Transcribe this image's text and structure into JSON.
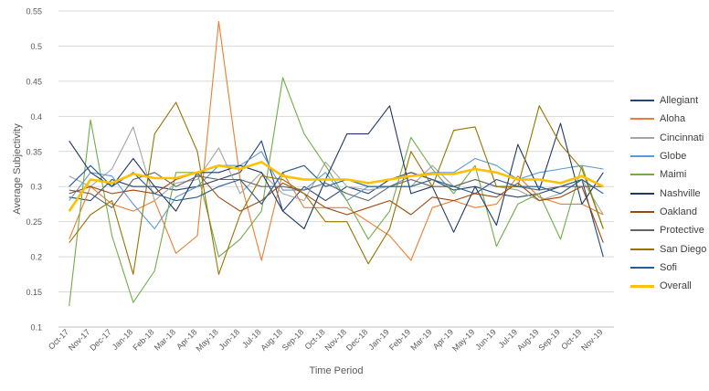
{
  "chart_data": {
    "type": "line",
    "title": "",
    "xlabel": "Time Period",
    "ylabel": "Average Subjectivity",
    "ylim": [
      0.1,
      0.55
    ],
    "yticks": [
      "0.1",
      "0.15",
      "0.2",
      "0.25",
      "0.3",
      "0.35",
      "0.4",
      "0.45",
      "0.5",
      "0.55"
    ],
    "categories": [
      "Oct-17",
      "Nov-17",
      "Dec-17",
      "Jan-18",
      "Feb-18",
      "Mar-18",
      "Apr-18",
      "May-18",
      "Jun-18",
      "Jul-18",
      "Aug-18",
      "Sep-18",
      "Oct-18",
      "Nov-18",
      "Dec-18",
      "Jan-19",
      "Feb-19",
      "Mar-19",
      "Apr-19",
      "May-19",
      "Jun-19",
      "Jul-19",
      "Aug-19",
      "Sep-19",
      "Oct-19",
      "Nov-19"
    ],
    "grid": "horizontal",
    "legend_position": "right",
    "series": [
      {
        "name": "Allegiant",
        "color": "#264478",
        "values": [
          0.285,
          0.28,
          0.31,
          0.3,
          0.3,
          0.295,
          0.3,
          0.31,
          0.32,
          0.365,
          0.265,
          0.3,
          0.28,
          0.3,
          0.29,
          0.31,
          0.32,
          0.31,
          0.295,
          0.3,
          0.29,
          0.285,
          0.29,
          0.3,
          0.31,
          0.2
        ]
      },
      {
        "name": "Aloha",
        "color": "#ED7D31",
        "values": [
          0.225,
          0.3,
          0.275,
          0.265,
          0.28,
          0.205,
          0.23,
          0.535,
          0.31,
          0.195,
          0.32,
          0.27,
          0.27,
          0.27,
          0.25,
          0.23,
          0.195,
          0.27,
          0.28,
          0.27,
          0.275,
          0.315,
          0.285,
          0.275,
          0.275,
          0.26
        ]
      },
      {
        "name": "Cincinnati",
        "color": "#A5A5A5",
        "values": [
          0.315,
          0.3,
          0.325,
          0.385,
          0.28,
          0.305,
          0.31,
          0.355,
          0.29,
          0.32,
          0.29,
          0.28,
          0.335,
          0.3,
          0.295,
          0.3,
          0.3,
          0.33,
          0.3,
          0.31,
          0.3,
          0.295,
          0.28,
          0.29,
          0.31,
          0.26
        ]
      },
      {
        "name": "Globe",
        "color": "#5B9BD5",
        "values": [
          0.28,
          0.32,
          0.315,
          0.275,
          0.24,
          0.285,
          0.3,
          0.33,
          0.33,
          0.35,
          0.295,
          0.295,
          0.32,
          0.28,
          0.3,
          0.3,
          0.315,
          0.32,
          0.32,
          0.34,
          0.33,
          0.31,
          0.32,
          0.325,
          0.33,
          0.325
        ]
      },
      {
        "name": "Maimi",
        "color": "#70AD47",
        "values": [
          0.13,
          0.395,
          0.23,
          0.135,
          0.18,
          0.32,
          0.32,
          0.2,
          0.225,
          0.265,
          0.455,
          0.375,
          0.33,
          0.28,
          0.225,
          0.265,
          0.37,
          0.325,
          0.29,
          0.33,
          0.215,
          0.275,
          0.29,
          0.225,
          0.33,
          0.24
        ]
      },
      {
        "name": "Nashville",
        "color": "#1F3864",
        "values": [
          0.365,
          0.32,
          0.3,
          0.34,
          0.3,
          0.265,
          0.32,
          0.32,
          0.33,
          0.32,
          0.265,
          0.24,
          0.31,
          0.375,
          0.375,
          0.415,
          0.29,
          0.3,
          0.235,
          0.3,
          0.245,
          0.36,
          0.295,
          0.39,
          0.275,
          0.32
        ]
      },
      {
        "name": "Oakland",
        "color": "#9E480E",
        "values": [
          0.29,
          0.3,
          0.29,
          0.295,
          0.29,
          0.31,
          0.32,
          0.285,
          0.265,
          0.28,
          0.305,
          0.29,
          0.27,
          0.26,
          0.27,
          0.28,
          0.26,
          0.285,
          0.28,
          0.29,
          0.285,
          0.305,
          0.28,
          0.285,
          0.3,
          0.22
        ]
      },
      {
        "name": "Protective",
        "color": "#636363",
        "values": [
          0.295,
          0.29,
          0.27,
          0.31,
          0.32,
          0.3,
          0.315,
          0.31,
          0.31,
          0.3,
          0.3,
          0.295,
          0.305,
          0.29,
          0.28,
          0.3,
          0.31,
          0.3,
          0.3,
          0.31,
          0.3,
          0.3,
          0.295,
          0.3,
          0.3,
          0.3
        ]
      },
      {
        "name": "San Diego",
        "color": "#997300",
        "values": [
          0.22,
          0.26,
          0.28,
          0.175,
          0.375,
          0.42,
          0.35,
          0.175,
          0.26,
          0.315,
          0.31,
          0.29,
          0.25,
          0.25,
          0.19,
          0.24,
          0.35,
          0.3,
          0.38,
          0.385,
          0.3,
          0.3,
          0.415,
          0.36,
          0.325,
          0.24
        ]
      },
      {
        "name": "Sofi",
        "color": "#255E91",
        "values": [
          0.3,
          0.33,
          0.3,
          0.32,
          0.29,
          0.28,
          0.285,
          0.3,
          0.31,
          0.275,
          0.32,
          0.33,
          0.3,
          0.31,
          0.3,
          0.3,
          0.3,
          0.31,
          0.3,
          0.29,
          0.31,
          0.3,
          0.3,
          0.29,
          0.31,
          0.29
        ]
      },
      {
        "name": "Overall",
        "color": "#FFC000",
        "width": 2.6,
        "values": [
          0.265,
          0.31,
          0.305,
          0.318,
          0.312,
          0.312,
          0.32,
          0.33,
          0.325,
          0.335,
          0.315,
          0.31,
          0.31,
          0.31,
          0.305,
          0.31,
          0.315,
          0.318,
          0.318,
          0.325,
          0.32,
          0.31,
          0.31,
          0.305,
          0.315,
          0.3
        ]
      }
    ]
  }
}
